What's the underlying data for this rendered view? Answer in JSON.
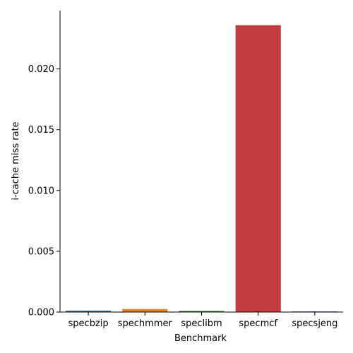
{
  "chart_data": {
    "type": "bar",
    "title": "",
    "xlabel": "Benchmark",
    "ylabel": "i-cache miss rate",
    "categories": [
      "specbzip",
      "spechmmer",
      "speclibm",
      "specmcf",
      "specsjeng"
    ],
    "values": [
      0.00012,
      0.00025,
      0.0001,
      0.0236,
      3e-05
    ],
    "colors": [
      "#3274a1",
      "#e1812c",
      "#3a923a",
      "#c03d3e",
      "#9372b2"
    ],
    "ylim": [
      0,
      0.0248
    ],
    "yticks": [
      0,
      0.005,
      0.01,
      0.015,
      0.02
    ],
    "ytick_labels": [
      "0.000",
      "0.005",
      "0.010",
      "0.015",
      "0.020"
    ],
    "grid": false
  }
}
